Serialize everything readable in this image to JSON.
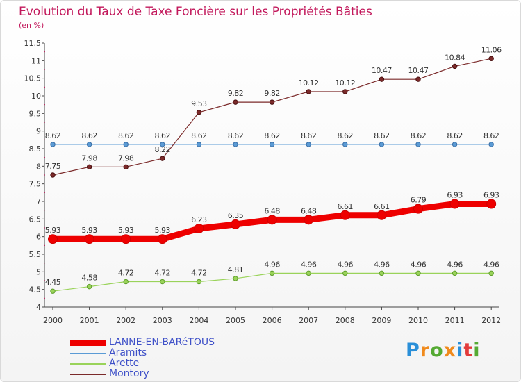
{
  "title": "Evolution du Taux de Taxe Foncière sur les Propriétés Bâties",
  "subtitle": "(en %)",
  "logo": {
    "text": "Proxiti",
    "colors": [
      "#2a8fd8",
      "#f08a1c",
      "#55aa33",
      "#f08a1c",
      "#2a8fd8",
      "#e23b3b",
      "#55aa33"
    ]
  },
  "chart_data": {
    "type": "line",
    "x": [
      "2000",
      "2001",
      "2002",
      "2003",
      "2004",
      "2005",
      "2006",
      "2007",
      "2008",
      "2009",
      "2010",
      "2011",
      "2012"
    ],
    "ylim": [
      4,
      11.5
    ],
    "yticks": [
      "4",
      "4.5",
      "5",
      "5.5",
      "6",
      "6.5",
      "7",
      "7.5",
      "8",
      "8.5",
      "9",
      "9.5",
      "10",
      "10.5",
      "11",
      "11.5"
    ],
    "grid": false,
    "legend_position": "bottom-left",
    "series": [
      {
        "name": "LANNE-EN-BARéTOUS",
        "color": "#ee0000",
        "values": [
          5.93,
          5.93,
          5.93,
          5.93,
          6.23,
          6.35,
          6.48,
          6.48,
          6.61,
          6.61,
          6.79,
          6.93,
          6.93
        ],
        "labels": [
          "5.93",
          "5.93",
          "5.93",
          "5.93",
          "6.23",
          "6.35",
          "6.48",
          "6.48",
          "6.61",
          "6.61",
          "6.79",
          "6.93",
          "6.93"
        ]
      },
      {
        "name": "Aramits",
        "color": "#5b9bd5",
        "values": [
          8.62,
          8.62,
          8.62,
          8.62,
          8.62,
          8.62,
          8.62,
          8.62,
          8.62,
          8.62,
          8.62,
          8.62,
          8.62
        ],
        "labels": [
          "8.62",
          "8.62",
          "8.62",
          "8.62",
          "8.62",
          "8.62",
          "8.62",
          "8.62",
          "8.62",
          "8.62",
          "8.62",
          "8.62",
          "8.62"
        ]
      },
      {
        "name": "Arette",
        "color": "#9ad35a",
        "values": [
          4.45,
          4.58,
          4.72,
          4.72,
          4.72,
          4.81,
          4.96,
          4.96,
          4.96,
          4.96,
          4.96,
          4.96,
          4.96
        ],
        "labels": [
          "4.45",
          "4.58",
          "4.72",
          "4.72",
          "4.72",
          "4.81",
          "4.96",
          "4.96",
          "4.96",
          "4.96",
          "4.96",
          "4.96",
          "4.96"
        ]
      },
      {
        "name": "Montory",
        "color": "#7b2a2a",
        "values": [
          7.75,
          7.98,
          7.98,
          8.22,
          9.53,
          9.82,
          9.82,
          10.12,
          10.12,
          10.47,
          10.47,
          10.84,
          11.06
        ],
        "labels": [
          "7.75",
          "7.98",
          "7.98",
          "8.22",
          "9.53",
          "9.82",
          "9.82",
          "10.12",
          "10.12",
          "10.47",
          "10.47",
          "10.84",
          "11.06"
        ]
      }
    ]
  }
}
